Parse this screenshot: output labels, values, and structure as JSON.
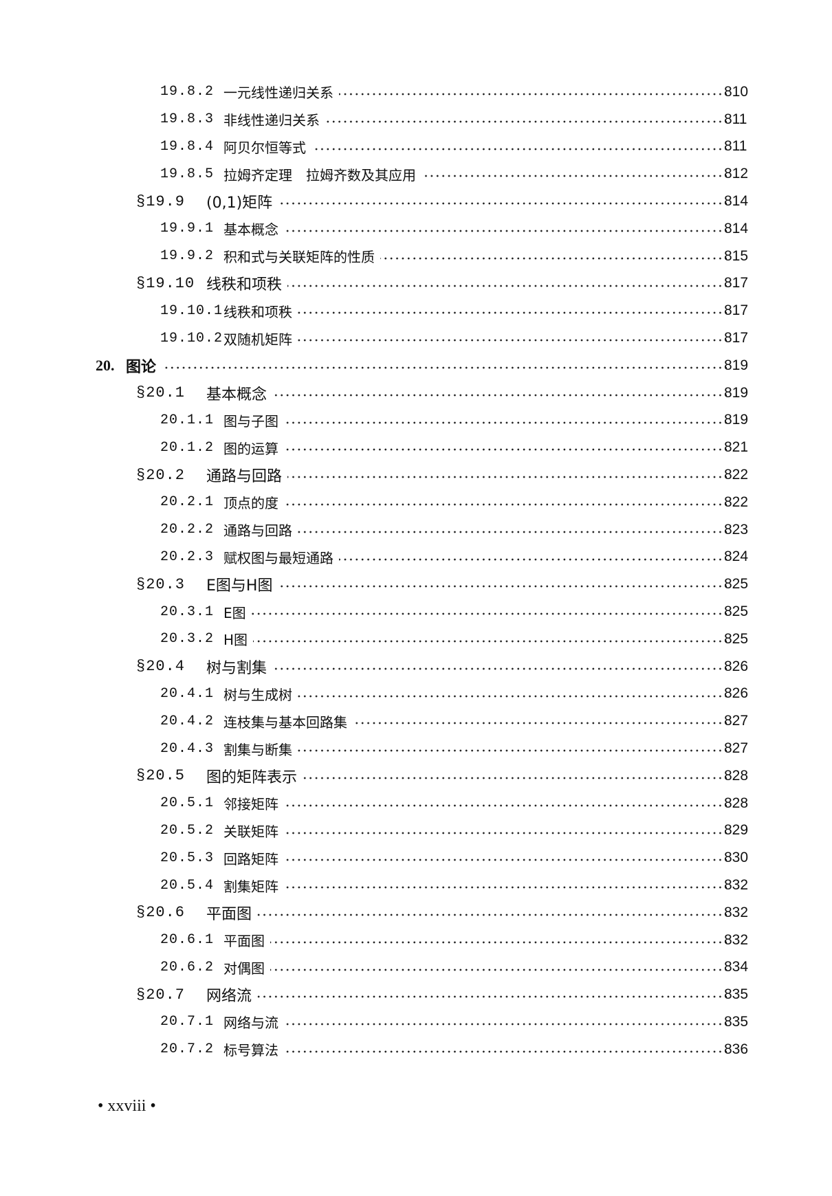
{
  "entries": [
    {
      "level": 3,
      "num": "19.8.2",
      "title": "一元线性递归关系",
      "page": "810"
    },
    {
      "level": 3,
      "num": "19.8.3",
      "title": "非线性递归关系",
      "page": "811"
    },
    {
      "level": 3,
      "num": "19.8.4",
      "title": "阿贝尔恒等式",
      "page": "811"
    },
    {
      "level": 3,
      "num": "19.8.5",
      "title": "拉姆齐定理　拉姆齐数及其应用",
      "page": "812"
    },
    {
      "level": 2,
      "num": "§19.9",
      "title": "(0,1)矩阵",
      "page": "814"
    },
    {
      "level": 3,
      "num": "19.9.1",
      "title": "基本概念",
      "page": "814"
    },
    {
      "level": 3,
      "num": "19.9.2",
      "title": "积和式与关联矩阵的性质",
      "page": "815"
    },
    {
      "level": 2,
      "num": "§19.10",
      "title": "线秩和项秩",
      "page": "817"
    },
    {
      "level": 3,
      "num": "19.10.1",
      "title": "线秩和项秩",
      "page": "817"
    },
    {
      "level": 3,
      "num": "19.10.2",
      "title": "双随机矩阵",
      "page": "817"
    },
    {
      "level": 1,
      "num": "20.",
      "title": "图论",
      "page": "819"
    },
    {
      "level": 2,
      "num": "§20.1",
      "title": "基本概念",
      "page": "819"
    },
    {
      "level": 3,
      "num": "20.1.1",
      "title": "图与子图",
      "page": "819"
    },
    {
      "level": 3,
      "num": "20.1.2",
      "title": "图的运算",
      "page": "821"
    },
    {
      "level": 2,
      "num": "§20.2",
      "title": "通路与回路",
      "page": "822"
    },
    {
      "level": 3,
      "num": "20.2.1",
      "title": "顶点的度",
      "page": "822"
    },
    {
      "level": 3,
      "num": "20.2.2",
      "title": "通路与回路",
      "page": "823"
    },
    {
      "level": 3,
      "num": "20.2.3",
      "title": "赋权图与最短通路",
      "page": "824"
    },
    {
      "level": 2,
      "num": "§20.3",
      "title": "E图与H图",
      "page": "825"
    },
    {
      "level": 3,
      "num": "20.3.1",
      "title": "E图",
      "page": "825"
    },
    {
      "level": 3,
      "num": "20.3.2",
      "title": "H图",
      "page": "825"
    },
    {
      "level": 2,
      "num": "§20.4",
      "title": "树与割集",
      "page": "826"
    },
    {
      "level": 3,
      "num": "20.4.1",
      "title": "树与生成树",
      "page": "826"
    },
    {
      "level": 3,
      "num": "20.4.2",
      "title": "连枝集与基本回路集",
      "page": "827"
    },
    {
      "level": 3,
      "num": "20.4.3",
      "title": "割集与断集",
      "page": "827"
    },
    {
      "level": 2,
      "num": "§20.5",
      "title": "图的矩阵表示",
      "page": "828"
    },
    {
      "level": 3,
      "num": "20.5.1",
      "title": "邻接矩阵",
      "page": "828"
    },
    {
      "level": 3,
      "num": "20.5.2",
      "title": "关联矩阵",
      "page": "829"
    },
    {
      "level": 3,
      "num": "20.5.3",
      "title": "回路矩阵",
      "page": "830"
    },
    {
      "level": 3,
      "num": "20.5.4",
      "title": "割集矩阵",
      "page": "832"
    },
    {
      "level": 2,
      "num": "§20.6",
      "title": "平面图",
      "page": "832"
    },
    {
      "level": 3,
      "num": "20.6.1",
      "title": "平面图",
      "page": "832"
    },
    {
      "level": 3,
      "num": "20.6.2",
      "title": "对偶图",
      "page": "834"
    },
    {
      "level": 2,
      "num": "§20.7",
      "title": "网络流",
      "page": "835"
    },
    {
      "level": 3,
      "num": "20.7.1",
      "title": "网络与流",
      "page": "835"
    },
    {
      "level": 3,
      "num": "20.7.2",
      "title": "标号算法",
      "page": "836"
    }
  ],
  "footer": {
    "page_label": "•  xxviii  •"
  }
}
